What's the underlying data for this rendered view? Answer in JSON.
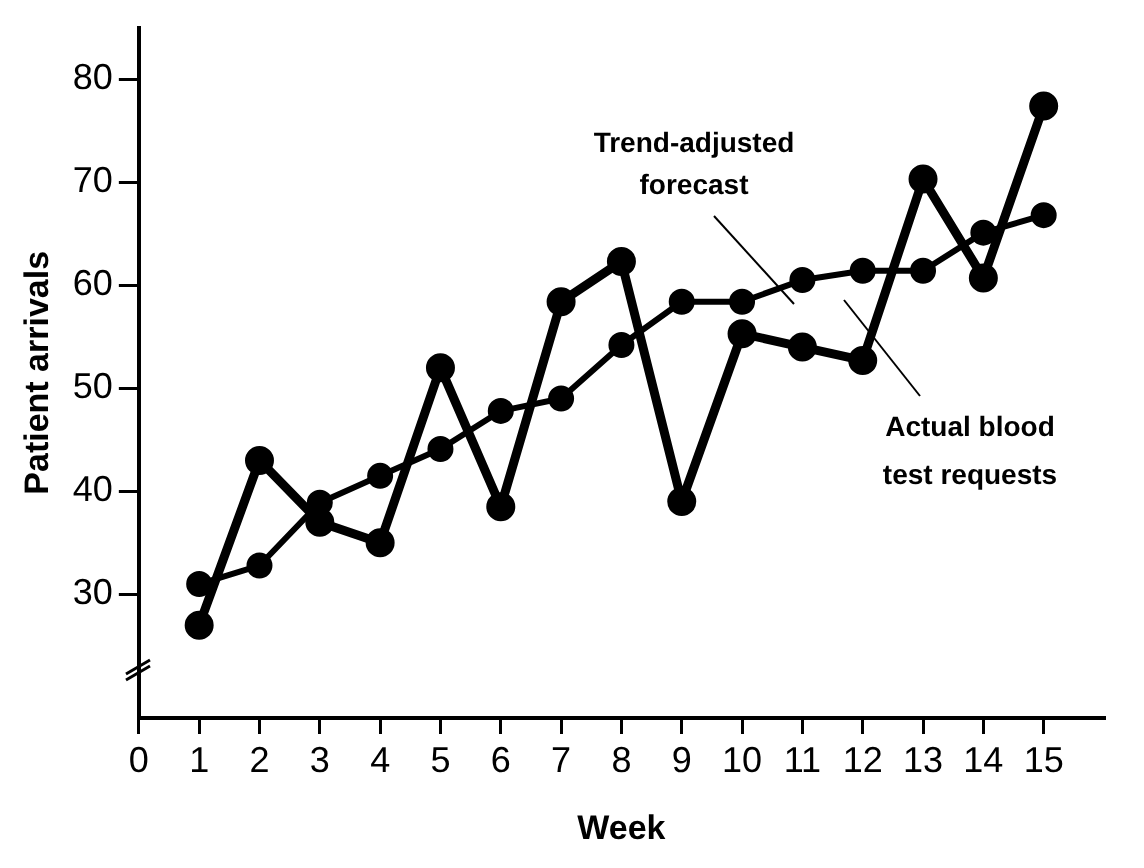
{
  "chart_data": {
    "type": "line",
    "xlabel": "Week",
    "ylabel": "Patient arrivals",
    "x": [
      1,
      2,
      3,
      4,
      5,
      6,
      7,
      8,
      9,
      10,
      11,
      12,
      13,
      14,
      15
    ],
    "series": [
      {
        "name": "Trend-adjusted forecast",
        "color": "#000000",
        "values": [
          31,
          32.8,
          38.9,
          41.5,
          44.1,
          47.8,
          49,
          54.2,
          58.4,
          58.4,
          60.5,
          61.4,
          61.4,
          65.1,
          66.8
        ]
      },
      {
        "name": "Actual blood test requests",
        "color": "#000000",
        "values": [
          27,
          43,
          37,
          35,
          52,
          38.5,
          58.4,
          62.3,
          39,
          55.3,
          54,
          52.7,
          70.3,
          60.7,
          77.4
        ]
      }
    ],
    "xlim": [
      0,
      16
    ],
    "xticks": [
      0,
      1,
      2,
      3,
      4,
      5,
      6,
      7,
      8,
      9,
      10,
      11,
      12,
      13,
      14,
      15
    ],
    "ylim": [
      18,
      85
    ],
    "yticks": [
      30,
      40,
      50,
      60,
      70,
      80
    ],
    "grid": false,
    "legend": false,
    "marker": "circle",
    "line_style": "solid"
  }
}
